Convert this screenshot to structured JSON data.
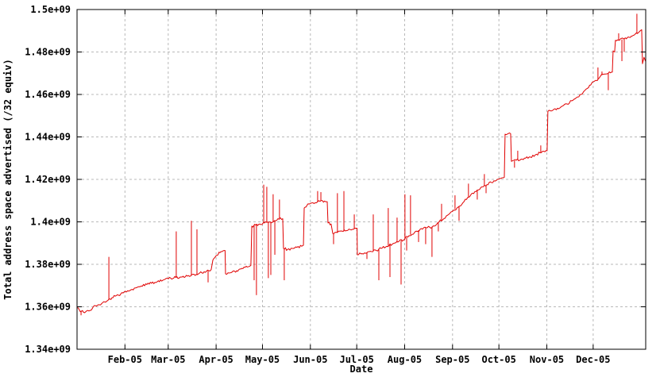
{
  "chart_data": {
    "type": "line",
    "title": "",
    "xlabel": "Date",
    "ylabel": "Total address space advertised (/32 equiv)",
    "legend": "none",
    "grid": "on",
    "x_unit": "days_since_2005-01-01",
    "value_unit": "1e9",
    "xlim_days": [
      0,
      368
    ],
    "ylim": [
      1.34,
      1.5
    ],
    "series_color": "#e00000",
    "grid_color": "#b9b9b9",
    "border_color": "#000000",
    "yticks": [
      {
        "v": 1.34,
        "label": "1.34e+09"
      },
      {
        "v": 1.36,
        "label": "1.36e+09"
      },
      {
        "v": 1.38,
        "label": "1.38e+09"
      },
      {
        "v": 1.4,
        "label": "1.4e+09"
      },
      {
        "v": 1.42,
        "label": "1.42e+09"
      },
      {
        "v": 1.44,
        "label": "1.44e+09"
      },
      {
        "v": 1.46,
        "label": "1.46e+09"
      },
      {
        "v": 1.48,
        "label": "1.48e+09"
      },
      {
        "v": 1.5,
        "label": "1.5e+09"
      }
    ],
    "xticks": [
      {
        "day": 31,
        "label": "Feb-05"
      },
      {
        "day": 59,
        "label": "Mar-05"
      },
      {
        "day": 90,
        "label": "Apr-05"
      },
      {
        "day": 120,
        "label": "May-05"
      },
      {
        "day": 151,
        "label": "Jun-05"
      },
      {
        "day": 181,
        "label": "Jul-05"
      },
      {
        "day": 212,
        "label": "Aug-05"
      },
      {
        "day": 243,
        "label": "Sep-05"
      },
      {
        "day": 273,
        "label": "Oct-05"
      },
      {
        "day": 304,
        "label": "Nov-05"
      },
      {
        "day": 334,
        "label": "Dec-05"
      }
    ],
    "noise_amplitude": 0.0006,
    "baseline": [
      [
        0,
        1.3595
      ],
      [
        1.5,
        1.3585
      ],
      [
        4.1,
        1.3575
      ],
      [
        7.7,
        1.358
      ],
      [
        11.8,
        1.3605
      ],
      [
        15.9,
        1.3615
      ],
      [
        20.6,
        1.3635
      ],
      [
        24.7,
        1.365
      ],
      [
        29.8,
        1.3665
      ],
      [
        34.9,
        1.368
      ],
      [
        40.1,
        1.3695
      ],
      [
        45.2,
        1.3705
      ],
      [
        50.4,
        1.3715
      ],
      [
        55.5,
        1.3725
      ],
      [
        60.6,
        1.3735
      ],
      [
        67.3,
        1.374
      ],
      [
        73.5,
        1.3745
      ],
      [
        78.6,
        1.3755
      ],
      [
        82.2,
        1.3765
      ],
      [
        85.3,
        1.377
      ],
      [
        86.8,
        1.3775
      ],
      [
        87.9,
        1.382
      ],
      [
        89.9,
        1.384
      ],
      [
        92.5,
        1.3855
      ],
      [
        95.1,
        1.3865
      ],
      [
        95.8,
        1.3865
      ],
      [
        96.1,
        1.3755
      ],
      [
        99.2,
        1.376
      ],
      [
        103.3,
        1.377
      ],
      [
        107.4,
        1.378
      ],
      [
        111.5,
        1.379
      ],
      [
        112.5,
        1.3795
      ],
      [
        113.1,
        1.398
      ],
      [
        115.6,
        1.3985
      ],
      [
        118.2,
        1.399
      ],
      [
        121.3,
        1.3995
      ],
      [
        124.9,
        1.4
      ],
      [
        128.5,
        1.4005
      ],
      [
        130,
        1.4015
      ],
      [
        133.1,
        1.4015
      ],
      [
        133.6,
        1.3875
      ],
      [
        136.2,
        1.387
      ],
      [
        139.3,
        1.3875
      ],
      [
        142.3,
        1.388
      ],
      [
        145.4,
        1.3885
      ],
      [
        146.5,
        1.389
      ],
      [
        147,
        1.4065
      ],
      [
        149.5,
        1.4085
      ],
      [
        152.6,
        1.409
      ],
      [
        155.7,
        1.4095
      ],
      [
        158.8,
        1.41
      ],
      [
        160.8,
        1.4095
      ],
      [
        161.9,
        1.4095
      ],
      [
        162.4,
        1.3995
      ],
      [
        164.4,
        1.399
      ],
      [
        165.5,
        1.3945
      ],
      [
        168.5,
        1.395
      ],
      [
        172.2,
        1.3955
      ],
      [
        175.2,
        1.396
      ],
      [
        178.3,
        1.3965
      ],
      [
        180.4,
        1.397
      ],
      [
        181.2,
        1.397
      ],
      [
        181.4,
        1.3845
      ],
      [
        184.5,
        1.385
      ],
      [
        187.6,
        1.3855
      ],
      [
        190.6,
        1.386
      ],
      [
        193.7,
        1.3865
      ],
      [
        196.8,
        1.3875
      ],
      [
        200.4,
        1.3885
      ],
      [
        204,
        1.3895
      ],
      [
        207.6,
        1.3905
      ],
      [
        211.2,
        1.3915
      ],
      [
        214.8,
        1.3935
      ],
      [
        218.4,
        1.395
      ],
      [
        222,
        1.3965
      ],
      [
        225.1,
        1.3975
      ],
      [
        228.2,
        1.3975
      ],
      [
        231.2,
        1.398
      ],
      [
        234.3,
        1.4
      ],
      [
        237.4,
        1.4015
      ],
      [
        240.5,
        1.4035
      ],
      [
        243.6,
        1.4055
      ],
      [
        246.7,
        1.407
      ],
      [
        249.7,
        1.409
      ],
      [
        252.8,
        1.4115
      ],
      [
        255.9,
        1.4135
      ],
      [
        259,
        1.415
      ],
      [
        262.1,
        1.4165
      ],
      [
        265.2,
        1.4175
      ],
      [
        268.2,
        1.4185
      ],
      [
        271.3,
        1.4195
      ],
      [
        274.4,
        1.4205
      ],
      [
        276.5,
        1.421
      ],
      [
        277,
        1.4413
      ],
      [
        280.6,
        1.4415
      ],
      [
        281.1,
        1.4285
      ],
      [
        284.2,
        1.429
      ],
      [
        287.3,
        1.4295
      ],
      [
        290.3,
        1.43
      ],
      [
        293.4,
        1.4305
      ],
      [
        296.5,
        1.4315
      ],
      [
        299.6,
        1.4325
      ],
      [
        302.7,
        1.433
      ],
      [
        304.2,
        1.4335
      ],
      [
        304.7,
        1.452
      ],
      [
        307.8,
        1.4525
      ],
      [
        310.9,
        1.4535
      ],
      [
        314,
        1.4545
      ],
      [
        317.1,
        1.4555
      ],
      [
        320.1,
        1.457
      ],
      [
        323.2,
        1.4585
      ],
      [
        326.3,
        1.46
      ],
      [
        329.4,
        1.4625
      ],
      [
        332.5,
        1.4645
      ],
      [
        334,
        1.466
      ],
      [
        336.6,
        1.4665
      ],
      [
        338.6,
        1.4685
      ],
      [
        340.7,
        1.4695
      ],
      [
        343.8,
        1.47
      ],
      [
        345.8,
        1.4705
      ],
      [
        346.4,
        1.4705
      ],
      [
        346.9,
        1.4805
      ],
      [
        347.9,
        1.48
      ],
      [
        348.4,
        1.4855
      ],
      [
        351,
        1.4855
      ],
      [
        353.6,
        1.4862
      ],
      [
        356.1,
        1.4868
      ],
      [
        358.7,
        1.4875
      ],
      [
        361.3,
        1.4885
      ],
      [
        363.8,
        1.4895
      ],
      [
        365.4,
        1.4905
      ],
      [
        365.9,
        1.4745
      ],
      [
        366.9,
        1.4775
      ],
      [
        368,
        1.4755
      ]
    ],
    "spikes": [
      [
        2.6,
        1.356
      ],
      [
        20.6,
        1.3835
      ],
      [
        64.2,
        1.3955
      ],
      [
        74,
        1.4005
      ],
      [
        77.6,
        1.3965
      ],
      [
        84.8,
        1.3715
      ],
      [
        114.6,
        1.3725
      ],
      [
        116.1,
        1.3655
      ],
      [
        120.8,
        1.4175
      ],
      [
        122.8,
        1.4165
      ],
      [
        123.8,
        1.3735
      ],
      [
        125.4,
        1.375
      ],
      [
        126.9,
        1.413
      ],
      [
        128,
        1.3845
      ],
      [
        131,
        1.4105
      ],
      [
        134.1,
        1.3725
      ],
      [
        155.7,
        1.4145
      ],
      [
        157.8,
        1.414
      ],
      [
        166,
        1.3895
      ],
      [
        168.5,
        1.4135
      ],
      [
        172.7,
        1.4145
      ],
      [
        179.4,
        1.4035
      ],
      [
        187.6,
        1.3825
      ],
      [
        191.7,
        1.4035
      ],
      [
        195.3,
        1.3725
      ],
      [
        201.4,
        1.4065
      ],
      [
        202.5,
        1.374
      ],
      [
        207.1,
        1.402
      ],
      [
        209.7,
        1.3705
      ],
      [
        212.2,
        1.413
      ],
      [
        213.3,
        1.3865
      ],
      [
        215.8,
        1.4125
      ],
      [
        221,
        1.3905
      ],
      [
        225.6,
        1.3895
      ],
      [
        229.7,
        1.3835
      ],
      [
        233.8,
        1.3955
      ],
      [
        235.9,
        1.4085
      ],
      [
        244.6,
        1.4125
      ],
      [
        247.2,
        1.4005
      ],
      [
        253.3,
        1.418
      ],
      [
        259,
        1.4105
      ],
      [
        263.6,
        1.4225
      ],
      [
        264.7,
        1.4135
      ],
      [
        283.1,
        1.4255
      ],
      [
        285.2,
        1.4335
      ],
      [
        300.1,
        1.436
      ],
      [
        337.1,
        1.4727
      ],
      [
        339.7,
        1.4708
      ],
      [
        343.8,
        1.462
      ],
      [
        350.5,
        1.4888
      ],
      [
        352.6,
        1.4757
      ],
      [
        354.1,
        1.48
      ],
      [
        362.3,
        1.498
      ]
    ]
  }
}
